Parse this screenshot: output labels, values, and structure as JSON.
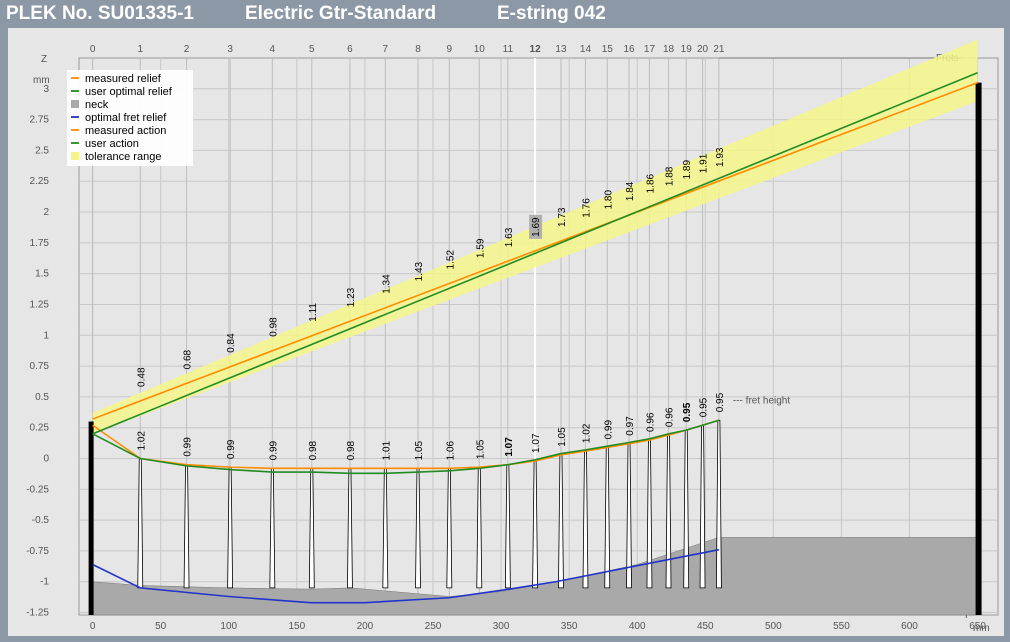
{
  "title": {
    "plek_no": "PLEK No. SU01335-1",
    "instrument": "Electric Gtr-Standard",
    "string": "E-string 042"
  },
  "chart_data": {
    "type": "line",
    "axes": {
      "y_label": "Z",
      "y_unit": "mm",
      "y_ticks": [
        "3",
        "2.75",
        "2.5",
        "2.25",
        "2",
        "1.75",
        "1.5",
        "1.25",
        "1",
        "0.75",
        "0.5",
        "0.25",
        "0",
        "-0.25",
        "-0.5",
        "-0.75",
        "-1",
        "-1.25"
      ],
      "y_range": [
        -1.27,
        3.25
      ],
      "x_label": "Y",
      "x_unit": "mm",
      "x_ticks": [
        "0",
        "50",
        "100",
        "150",
        "200",
        "250",
        "300",
        "350",
        "400",
        "450",
        "500",
        "550",
        "600",
        "650"
      ],
      "x_range": [
        -10,
        665
      ],
      "frets_label": "Frets",
      "fret_numbers": [
        "0",
        "1",
        "2",
        "3",
        "4",
        "5",
        "6",
        "7",
        "8",
        "9",
        "10",
        "11",
        "12",
        "13",
        "14",
        "15",
        "16",
        "17",
        "18",
        "19",
        "20",
        "21"
      ],
      "highlight_fret": "12",
      "grid": true
    },
    "fret_positions_mm": [
      0,
      35,
      69,
      101,
      132,
      161,
      189,
      215,
      239,
      262,
      284,
      305,
      325,
      344,
      362,
      378,
      394,
      409,
      423,
      436,
      448,
      460
    ],
    "legend": {
      "position": "top-left",
      "items": [
        {
          "label": "measured relief",
          "color": "#ff8c00",
          "kind": "line"
        },
        {
          "label": "user optimal relief",
          "color": "#228b22",
          "kind": "line"
        },
        {
          "label": "neck",
          "color": "#a9a9a9",
          "kind": "box"
        },
        {
          "label": "optimal fret relief",
          "color": "#2233cc",
          "kind": "line"
        },
        {
          "label": "measured action",
          "color": "#ff8c00",
          "kind": "line"
        },
        {
          "label": "user action",
          "color": "#228b22",
          "kind": "line"
        },
        {
          "label": "tolerance range",
          "color": "#f5f58a",
          "kind": "box"
        }
      ]
    },
    "action_labels": [
      "0.48",
      "0.68",
      "0.84",
      "0.98",
      "1.11",
      "1.23",
      "1.34",
      "1.43",
      "1.52",
      "1.59",
      "1.63",
      "1.69",
      "1.73",
      "1.76",
      "1.80",
      "1.84",
      "1.86",
      "1.88",
      "1.89",
      "1.91",
      "1.93"
    ],
    "fret_height_labels": [
      "1.02",
      "0.99",
      "0.99",
      "0.99",
      "0.98",
      "0.98",
      "1.01",
      "1.05",
      "1.06",
      "1.05",
      "1.07",
      "1.07",
      "1.05",
      "1.02",
      "0.99",
      "0.97",
      "0.96",
      "0.96",
      "0.95",
      "0.95",
      "0.95"
    ],
    "fret_height_bold": [
      false,
      false,
      false,
      false,
      false,
      false,
      false,
      false,
      false,
      false,
      true,
      false,
      false,
      false,
      false,
      false,
      false,
      false,
      true,
      false,
      false
    ],
    "fret_height_note": "--- fret height",
    "series": [
      {
        "name": "measured relief",
        "color": "#ff8c00",
        "x": [
          0,
          35,
          69,
          101,
          132,
          161,
          189,
          215,
          239,
          262,
          284,
          305,
          325,
          344,
          362,
          378,
          394,
          409,
          423,
          436,
          448,
          460
        ],
        "y": [
          0.27,
          0.0,
          -0.05,
          -0.07,
          -0.08,
          -0.08,
          -0.08,
          -0.08,
          -0.08,
          -0.08,
          -0.07,
          -0.05,
          -0.02,
          0.03,
          0.06,
          0.09,
          0.12,
          0.15,
          0.19,
          0.23,
          0.27,
          0.31
        ]
      },
      {
        "name": "user optimal relief",
        "color": "#228b22",
        "x": [
          0,
          35,
          69,
          101,
          132,
          161,
          189,
          215,
          239,
          262,
          284,
          305,
          325,
          344,
          362,
          378,
          394,
          409,
          423,
          436,
          448,
          460
        ],
        "y": [
          0.2,
          0.0,
          -0.06,
          -0.09,
          -0.11,
          -0.11,
          -0.12,
          -0.12,
          -0.11,
          -0.1,
          -0.08,
          -0.05,
          -0.01,
          0.04,
          0.07,
          0.1,
          0.13,
          0.16,
          0.2,
          0.23,
          0.27,
          0.31
        ]
      },
      {
        "name": "optimal fret relief",
        "color": "#2233cc",
        "x": [
          0,
          35,
          100,
          160,
          200,
          262,
          300,
          340,
          400,
          460
        ],
        "y": [
          -0.86,
          -1.05,
          -1.12,
          -1.17,
          -1.17,
          -1.13,
          -1.07,
          -1.0,
          -0.87,
          -0.74
        ]
      },
      {
        "name": "measured action",
        "color": "#ff8c00",
        "x": [
          0,
          650
        ],
        "y": [
          0.32,
          3.05
        ]
      },
      {
        "name": "user action",
        "color": "#228b22",
        "x": [
          0,
          650
        ],
        "y": [
          0.2,
          3.13
        ]
      }
    ],
    "tolerance_range": {
      "x": [
        0,
        650
      ],
      "upper": [
        0.37,
        3.4
      ],
      "lower": [
        0.2,
        2.9
      ]
    },
    "neck_profile": {
      "x": [
        0,
        35,
        100,
        160,
        190,
        262,
        300,
        350,
        400,
        460,
        650
      ],
      "y": [
        -1.0,
        -1.03,
        -1.05,
        -1.06,
        -1.05,
        -1.12,
        -1.08,
        -0.98,
        -0.86,
        -0.64,
        -0.64
      ]
    }
  }
}
